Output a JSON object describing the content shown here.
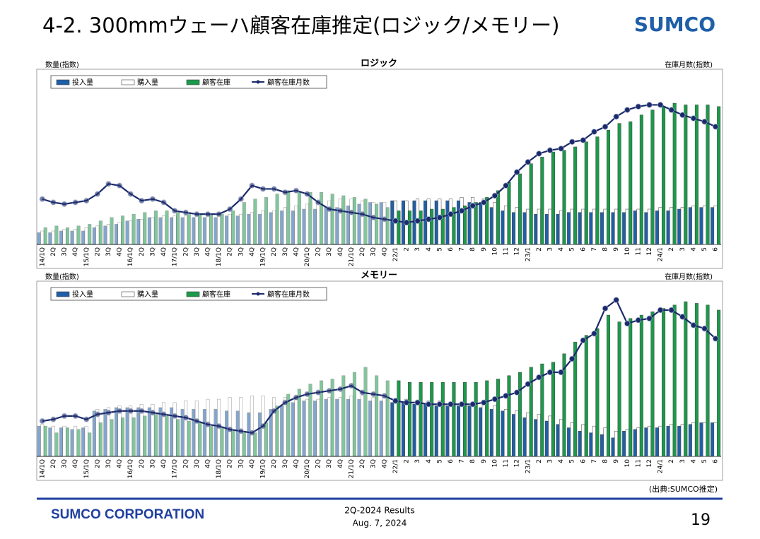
{
  "header": {
    "title": "4-2. 300mmウェーハ顧客在庫推定(ロジック/メモリー)",
    "logo": "SUMCO"
  },
  "chart_data": [
    {
      "type": "bar",
      "title": "ロジック",
      "y_label": "数量(指数)",
      "y2_label": "在庫月数(指数)",
      "legend": "top-left",
      "ylim": [
        0,
        100
      ],
      "y2lim": [
        0,
        100
      ],
      "categories": [
        "14/1Q",
        "2Q",
        "3Q",
        "4Q",
        "15/1Q",
        "2Q",
        "3Q",
        "4Q",
        "16/1Q",
        "2Q",
        "3Q",
        "4Q",
        "17/1Q",
        "2Q",
        "3Q",
        "4Q",
        "18/1Q",
        "2Q",
        "3Q",
        "4Q",
        "19/1Q",
        "2Q",
        "3Q",
        "4Q",
        "20/1Q",
        "2Q",
        "3Q",
        "4Q",
        "21/1Q",
        "2Q",
        "3Q",
        "4Q",
        "22/1",
        "2",
        "3",
        "4",
        "5",
        "6",
        "7",
        "8",
        "9",
        "10",
        "11",
        "12",
        "23/1",
        "2",
        "3",
        "4",
        "5",
        "6",
        "7",
        "8",
        "9",
        "10",
        "11",
        "12",
        "24/1",
        "2",
        "3",
        "4",
        "5",
        "6"
      ],
      "series": [
        {
          "name": "投入量",
          "color": "#1f5fa8",
          "values": [
            7,
            7,
            8,
            8,
            8,
            10,
            11,
            12,
            14,
            15,
            16,
            16,
            16,
            16,
            16,
            16,
            16,
            17,
            17,
            18,
            18,
            19,
            20,
            20,
            21,
            21,
            22,
            22,
            23,
            24,
            25,
            25,
            26,
            26,
            26,
            26,
            26,
            26,
            26,
            25,
            25,
            22,
            20,
            19,
            19,
            18,
            18,
            18,
            19,
            19,
            19,
            19,
            19,
            19,
            20,
            19,
            20,
            20,
            21,
            22,
            22,
            22
          ]
        },
        {
          "name": "購入量",
          "color": "#ffffff",
          "values": [
            8,
            8,
            9,
            9,
            10,
            11,
            12,
            13,
            14,
            15,
            16,
            17,
            17,
            17,
            17,
            17,
            17,
            18,
            18,
            19,
            20,
            20,
            22,
            23,
            24,
            25,
            26,
            27,
            27,
            26,
            25,
            25,
            26,
            26,
            27,
            27,
            27,
            27,
            28,
            28,
            27,
            25,
            23,
            22,
            21,
            21,
            21,
            20,
            21,
            21,
            21,
            21,
            21,
            21,
            21,
            21,
            22,
            22,
            22,
            23,
            23,
            23
          ]
        },
        {
          "name": "顧客在庫",
          "color": "#1a9a4a",
          "values": [
            10,
            11,
            10,
            11,
            12,
            14,
            16,
            17,
            18,
            19,
            20,
            20,
            19,
            19,
            18,
            18,
            18,
            20,
            25,
            27,
            28,
            30,
            32,
            31,
            31,
            31,
            30,
            29,
            28,
            27,
            24,
            22,
            20,
            20,
            20,
            21,
            21,
            22,
            23,
            25,
            28,
            32,
            37,
            42,
            48,
            52,
            55,
            56,
            58,
            61,
            64,
            68,
            72,
            73,
            77,
            80,
            82,
            84,
            83,
            83,
            83,
            82
          ]
        },
        {
          "name": "顧客在庫月数",
          "type": "line",
          "axis": "y2",
          "color": "#1b2a6b",
          "values": [
            27,
            25,
            24,
            25,
            26,
            30,
            36,
            35,
            30,
            26,
            27,
            25,
            20,
            19,
            18,
            18,
            18,
            21,
            27,
            35,
            33,
            33,
            31,
            32,
            30,
            25,
            21,
            20,
            19,
            18,
            16,
            15,
            14,
            13,
            14,
            15,
            16,
            18,
            20,
            23,
            25,
            29,
            35,
            43,
            49,
            54,
            56,
            57,
            61,
            62,
            67,
            70,
            76,
            80,
            82,
            83,
            83,
            80,
            77,
            75,
            73,
            70
          ]
        }
      ]
    },
    {
      "type": "bar",
      "title": "メモリー",
      "y_label": "数量(指数)",
      "y2_label": "在庫月数(指数)",
      "legend": "top-left",
      "ylim": [
        0,
        100
      ],
      "y2lim": [
        0,
        100
      ],
      "categories": [
        "14/1Q",
        "2Q",
        "3Q",
        "4Q",
        "15/1Q",
        "2Q",
        "3Q",
        "4Q",
        "16/1Q",
        "2Q",
        "3Q",
        "4Q",
        "17/1Q",
        "2Q",
        "3Q",
        "4Q",
        "18/1Q",
        "2Q",
        "3Q",
        "4Q",
        "19/1Q",
        "2Q",
        "3Q",
        "4Q",
        "20/1Q",
        "2Q",
        "3Q",
        "4Q",
        "21/1Q",
        "2Q",
        "3Q",
        "4Q",
        "22/1",
        "2",
        "3",
        "4",
        "5",
        "6",
        "7",
        "8",
        "9",
        "10",
        "11",
        "12",
        "23/1",
        "2",
        "3",
        "4",
        "5",
        "6",
        "7",
        "8",
        "9",
        "10",
        "11",
        "12",
        "24/1",
        "2",
        "3",
        "4",
        "5",
        "6"
      ],
      "series": [
        {
          "name": "投入量",
          "color": "#1f5fa8",
          "values": [
            18,
            17,
            17,
            16,
            17,
            27,
            28,
            29,
            29,
            29,
            29,
            29,
            29,
            28,
            28,
            28,
            28,
            27,
            27,
            26,
            26,
            28,
            30,
            32,
            33,
            33,
            34,
            34,
            34,
            34,
            33,
            33,
            32,
            32,
            31,
            31,
            30,
            30,
            30,
            30,
            29,
            28,
            27,
            25,
            23,
            22,
            21,
            19,
            17,
            15,
            14,
            13,
            11,
            15,
            16,
            17,
            17,
            18,
            18,
            19,
            20,
            20
          ]
        },
        {
          "name": "購入量",
          "color": "#ffffff",
          "values": [
            19,
            18,
            18,
            18,
            18,
            28,
            29,
            30,
            30,
            31,
            31,
            32,
            32,
            33,
            33,
            34,
            34,
            35,
            35,
            36,
            36,
            35,
            35,
            34,
            34,
            34,
            35,
            35,
            36,
            36,
            35,
            35,
            34,
            34,
            33,
            33,
            33,
            32,
            32,
            32,
            31,
            30,
            28,
            27,
            26,
            25,
            24,
            22,
            20,
            19,
            18,
            17,
            15,
            16,
            17,
            18,
            18,
            19,
            19,
            20,
            20,
            20
          ]
        },
        {
          "name": "顧客在庫",
          "color": "#1a9a4a",
          "values": [
            18,
            14,
            17,
            16,
            14,
            20,
            22,
            23,
            23,
            24,
            25,
            24,
            22,
            21,
            20,
            18,
            17,
            16,
            15,
            14,
            20,
            30,
            37,
            40,
            43,
            45,
            46,
            48,
            50,
            53,
            48,
            45,
            45,
            44,
            44,
            44,
            44,
            44,
            44,
            44,
            45,
            46,
            48,
            50,
            53,
            55,
            56,
            61,
            68,
            72,
            76,
            84,
            80,
            82,
            84,
            86,
            88,
            90,
            92,
            91,
            90,
            87
          ]
        },
        {
          "name": "顧客在庫月数",
          "type": "line",
          "axis": "y2",
          "color": "#1b2a6b",
          "values": [
            21,
            22,
            24,
            24,
            22,
            25,
            26,
            27,
            27,
            27,
            26,
            25,
            24,
            23,
            21,
            19,
            18,
            16,
            15,
            14,
            18,
            27,
            32,
            35,
            37,
            38,
            39,
            40,
            42,
            38,
            37,
            36,
            33,
            32,
            32,
            31,
            31,
            31,
            31,
            31,
            32,
            34,
            36,
            38,
            43,
            47,
            50,
            50,
            58,
            69,
            73,
            88,
            93,
            79,
            81,
            82,
            87,
            87,
            83,
            78,
            76,
            70
          ]
        }
      ]
    }
  ],
  "source": "(出典:SUMCO推定)",
  "footer": {
    "company": "SUMCO CORPORATION",
    "report": "2Q-2024 Results",
    "date": "Aug. 7, 2024",
    "page": "19"
  }
}
